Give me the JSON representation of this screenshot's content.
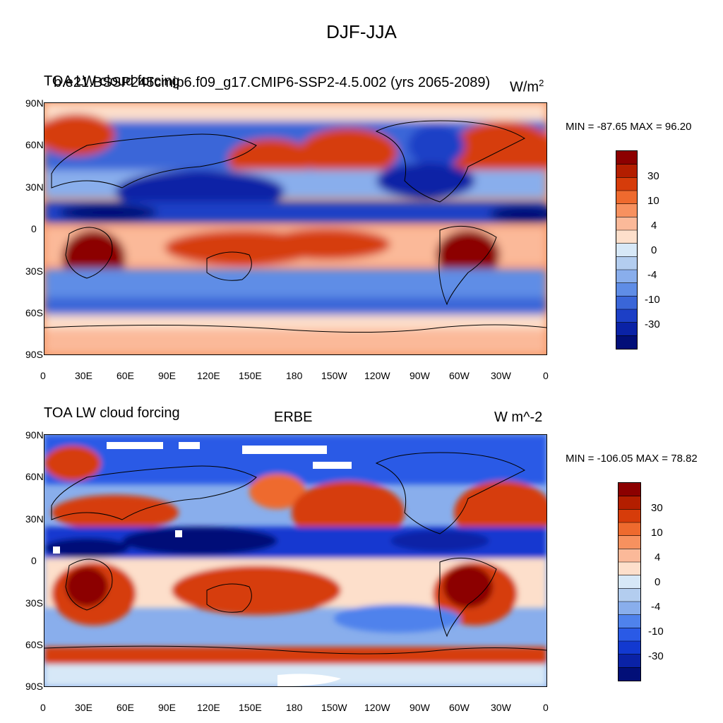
{
  "title": "DJF-JJA",
  "panels": [
    {
      "id": "top",
      "left_title_overlap": [
        "TOA LW cloud forcing",
        "b.e21.BSSP245cmip6.f09_g17.CMIP6-SSP2-4.5.002 (yrs 2065-2089)"
      ],
      "center_title": "",
      "units": "W/m",
      "units_sup": "2",
      "stats": "MIN = -87.65 MAX =  96.20"
    },
    {
      "id": "bottom",
      "left_title": "TOA LW cloud forcing",
      "center_title": "ERBE",
      "units": "W m^-2",
      "stats": "MIN = -106.05 MAX =  78.82"
    }
  ],
  "axes": {
    "lat_labels": [
      "90N",
      "60N",
      "30N",
      "0",
      "30S",
      "60S",
      "90S"
    ],
    "lon_labels": [
      "0",
      "30E",
      "60E",
      "90E",
      "120E",
      "150E",
      "180",
      "150W",
      "120W",
      "90W",
      "60W",
      "30W",
      "0"
    ]
  },
  "colorbar": {
    "labels": [
      "30",
      "10",
      "4",
      "0",
      "-4",
      "-10",
      "-30"
    ],
    "colors_top": [
      "#8c0000",
      "#b31e00",
      "#d63c0a",
      "#ee6a2e",
      "#f7915f",
      "#fbb999",
      "#fddfcb",
      "#d7e8f7",
      "#b3cdef",
      "#89aeec",
      "#5f8de6",
      "#3a66d8",
      "#1c3fc6",
      "#0a22a6",
      "#020f78"
    ],
    "colors_bottom": [
      "#8c0000",
      "#b31e00",
      "#d63c0a",
      "#ee6a2e",
      "#f7915f",
      "#fbb999",
      "#fddfcb",
      "#d7e8f7",
      "#b3cdef",
      "#89aeec",
      "#4f82ec",
      "#2a5ae6",
      "#1239d0",
      "#0a22a6",
      "#020f78"
    ]
  }
}
